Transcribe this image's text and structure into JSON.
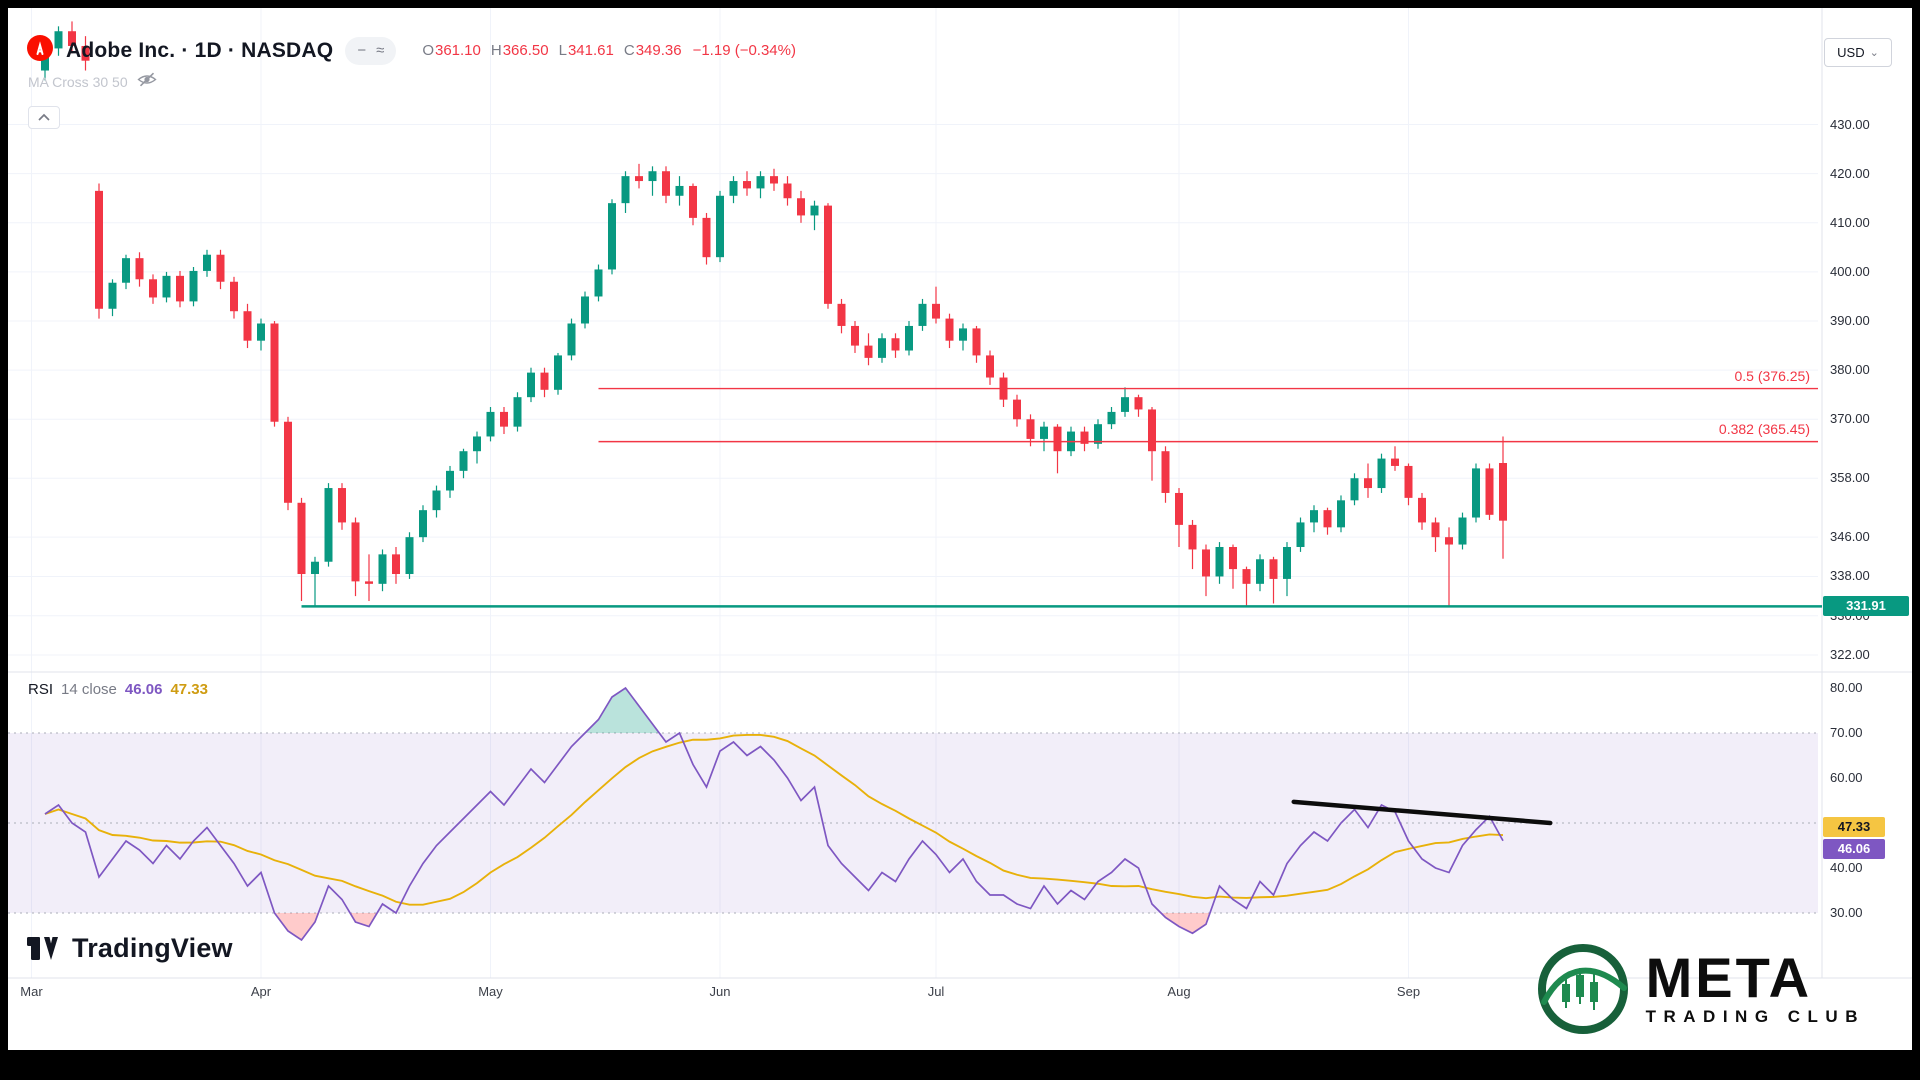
{
  "header": {
    "symbol_title": "Adobe Inc. · 1D · NASDAQ",
    "ohlc": {
      "o_label": "O",
      "o": "361.10",
      "h_label": "H",
      "h": "366.50",
      "l_label": "L",
      "l": "341.61",
      "c_label": "C",
      "c": "349.36",
      "change": "−1.19 (−0.34%)"
    },
    "indicator": {
      "label": "MA Cross 30 50"
    },
    "currency_button": "USD"
  },
  "icons": {
    "minus": "−",
    "wave": "≈",
    "chevron_down": "⌄"
  },
  "rsi_panel": {
    "title": "RSI",
    "params": "14 close",
    "value_main": "46.06",
    "value_ma": "47.33"
  },
  "watermarks": {
    "tradingview": "TradingView",
    "club_name": "META",
    "club_sub": "TRADING CLUB"
  },
  "chart_data": {
    "type": "candlestick",
    "title": "Adobe Inc. Daily (NASDAQ) with RSI 14",
    "symbol": "Adobe Inc.",
    "timeframe": "1D",
    "exchange": "NASDAQ",
    "price_ticks": [
      {
        "label": "430.00",
        "value": 430
      },
      {
        "label": "420.00",
        "value": 420
      },
      {
        "label": "410.00",
        "value": 410
      },
      {
        "label": "400.00",
        "value": 400
      },
      {
        "label": "390.00",
        "value": 390
      },
      {
        "label": "380.00",
        "value": 380
      },
      {
        "label": "370.00",
        "value": 370
      },
      {
        "label": "358.00",
        "value": 358
      },
      {
        "label": "346.00",
        "value": 346
      },
      {
        "label": "338.00",
        "value": 338
      },
      {
        "label": "330.00",
        "value": 330
      },
      {
        "label": "322.00",
        "value": 322
      }
    ],
    "time_ticks": [
      {
        "label": "Mar",
        "index": -1
      },
      {
        "label": "Apr",
        "index": 16
      },
      {
        "label": "May",
        "index": 33
      },
      {
        "label": "Jun",
        "index": 50
      },
      {
        "label": "Jul",
        "index": 66
      },
      {
        "label": "Aug",
        "index": 84
      },
      {
        "label": "Sep",
        "index": 101
      }
    ],
    "candles": [
      [
        441,
        447,
        439,
        445.5
      ],
      [
        445.5,
        450,
        444,
        449
      ],
      [
        449,
        451,
        444.5,
        446
      ],
      [
        446,
        448,
        441,
        443
      ],
      [
        416.5,
        418,
        390.5,
        392.5
      ],
      [
        392.5,
        398.5,
        391,
        397.8
      ],
      [
        397.8,
        403.5,
        396.5,
        402.8
      ],
      [
        402.8,
        404,
        397,
        398.5
      ],
      [
        398.5,
        399.5,
        393.5,
        394.8
      ],
      [
        394.8,
        400,
        393.8,
        399.2
      ],
      [
        399.2,
        400.2,
        392.8,
        394
      ],
      [
        394,
        401,
        393,
        400.2
      ],
      [
        400.2,
        404.5,
        399,
        403.5
      ],
      [
        403.5,
        404.5,
        396.5,
        398
      ],
      [
        398,
        399,
        390.5,
        392
      ],
      [
        392,
        393.5,
        384.5,
        386
      ],
      [
        386,
        390.5,
        384,
        389.5
      ],
      [
        389.5,
        390,
        368.5,
        369.5
      ],
      [
        369.5,
        370.5,
        351.5,
        353
      ],
      [
        353,
        354,
        333,
        338.5
      ],
      [
        338.5,
        342,
        331.9,
        341
      ],
      [
        341,
        357,
        340,
        356
      ],
      [
        356,
        357,
        347.5,
        349
      ],
      [
        349,
        350,
        334,
        337
      ],
      [
        337,
        342.5,
        333,
        336.5
      ],
      [
        336.5,
        343.5,
        335,
        342.5
      ],
      [
        342.5,
        344,
        336.5,
        338.5
      ],
      [
        338.5,
        347,
        337.5,
        346
      ],
      [
        346,
        352.5,
        345,
        351.5
      ],
      [
        351.5,
        356.5,
        350,
        355.5
      ],
      [
        355.5,
        360.5,
        354,
        359.5
      ],
      [
        359.5,
        364,
        358,
        363.5
      ],
      [
        363.5,
        367.5,
        361,
        366.5
      ],
      [
        366.5,
        372.5,
        365.5,
        371.5
      ],
      [
        371.5,
        372.5,
        367,
        368.5
      ],
      [
        368.5,
        375.5,
        367.5,
        374.5
      ],
      [
        374.5,
        380.5,
        373.5,
        379.5
      ],
      [
        379.5,
        380.5,
        374.5,
        376
      ],
      [
        376,
        383.5,
        375,
        383
      ],
      [
        383,
        390.5,
        382,
        389.5
      ],
      [
        389.5,
        396,
        388.5,
        395
      ],
      [
        395,
        401.5,
        394,
        400.5
      ],
      [
        400.5,
        414.8,
        399.5,
        414
      ],
      [
        414,
        420.5,
        412,
        419.5
      ],
      [
        419.5,
        422,
        417,
        418.5
      ],
      [
        418.5,
        421.5,
        415.5,
        420.5
      ],
      [
        420.5,
        421.5,
        414,
        415.5
      ],
      [
        415.5,
        419.5,
        413.5,
        417.5
      ],
      [
        417.5,
        418,
        409.5,
        411
      ],
      [
        411,
        412,
        401.5,
        403
      ],
      [
        403,
        416.5,
        402,
        415.5
      ],
      [
        415.5,
        419.5,
        414,
        418.5
      ],
      [
        418.5,
        420.5,
        415.5,
        417
      ],
      [
        417,
        420.5,
        415,
        419.5
      ],
      [
        419.5,
        421,
        416.5,
        418
      ],
      [
        418,
        419.5,
        413.5,
        415
      ],
      [
        415,
        416.5,
        410,
        411.5
      ],
      [
        411.5,
        414.5,
        408.5,
        413.5
      ],
      [
        413.5,
        414,
        392.5,
        393.5
      ],
      [
        393.5,
        394.5,
        387.5,
        389
      ],
      [
        389,
        390,
        383.5,
        385
      ],
      [
        385,
        387.5,
        381,
        382.5
      ],
      [
        382.5,
        387.5,
        381.5,
        386.5
      ],
      [
        386.5,
        387.5,
        382.5,
        384
      ],
      [
        384,
        390,
        383,
        389
      ],
      [
        389,
        394.5,
        388,
        393.5
      ],
      [
        393.5,
        397,
        389.5,
        390.5
      ],
      [
        390.5,
        391.5,
        384.5,
        386
      ],
      [
        386,
        389.5,
        384,
        388.5
      ],
      [
        388.5,
        389,
        381.5,
        383
      ],
      [
        383,
        384,
        377,
        378.5
      ],
      [
        378.5,
        379.5,
        372.5,
        374
      ],
      [
        374,
        375,
        368.5,
        370
      ],
      [
        370,
        371,
        364.5,
        366
      ],
      [
        366,
        369.5,
        363.5,
        368.5
      ],
      [
        368.5,
        369,
        359,
        363.5
      ],
      [
        363.5,
        368.5,
        362.5,
        367.5
      ],
      [
        367.5,
        368.5,
        363.5,
        365
      ],
      [
        365,
        370,
        364,
        369
      ],
      [
        369,
        372.5,
        368,
        371.5
      ],
      [
        371.5,
        376.5,
        370.5,
        374.5
      ],
      [
        374.5,
        375,
        370.5,
        372
      ],
      [
        372,
        372.5,
        357.5,
        363.5
      ],
      [
        363.5,
        364.5,
        353,
        355
      ],
      [
        355,
        356,
        344,
        348.5
      ],
      [
        348.5,
        349.5,
        339.5,
        343.5
      ],
      [
        343.5,
        344.5,
        334,
        338
      ],
      [
        338,
        345,
        336.5,
        344
      ],
      [
        344,
        344.5,
        335.5,
        339.5
      ],
      [
        339.5,
        340,
        331.9,
        336.5
      ],
      [
        336.5,
        342.5,
        335,
        341.5
      ],
      [
        341.5,
        342,
        332.5,
        337.5
      ],
      [
        337.5,
        345,
        334,
        344
      ],
      [
        344,
        350,
        343,
        349
      ],
      [
        349,
        352.5,
        347,
        351.5
      ],
      [
        351.5,
        352,
        346.5,
        348
      ],
      [
        348,
        354.5,
        347,
        353.5
      ],
      [
        353.5,
        359,
        352.5,
        358
      ],
      [
        358,
        361,
        354,
        356
      ],
      [
        356,
        363,
        355,
        362
      ],
      [
        362,
        364.5,
        359.5,
        360.5
      ],
      [
        360.5,
        361,
        352.5,
        354
      ],
      [
        354,
        355,
        347.5,
        349
      ],
      [
        349,
        350,
        343,
        346
      ],
      [
        346,
        348,
        332,
        344.5
      ],
      [
        344.5,
        351,
        343.5,
        350
      ],
      [
        350,
        361,
        349,
        360
      ],
      [
        360,
        361,
        349.5,
        350.55
      ],
      [
        361.1,
        366.5,
        341.61,
        349.36
      ]
    ],
    "fib_levels": [
      {
        "label": "0.5 (376.25)",
        "value": 376.25,
        "start_index": 41
      },
      {
        "label": "0.382 (365.45)",
        "value": 365.45,
        "start_index": 41
      }
    ],
    "support_line": {
      "value": 331.91,
      "start_index": 19,
      "badge_label": "331.91"
    },
    "rsi": {
      "period": 14,
      "source": "close",
      "last": 46.06,
      "ma_last": 47.33,
      "band": [
        30,
        70
      ],
      "mid": 50,
      "values": [
        52,
        54,
        50,
        48,
        38,
        42,
        46,
        44,
        41,
        45,
        42,
        46,
        49,
        45,
        41,
        36,
        39,
        30,
        26,
        24,
        28,
        36,
        33,
        28,
        27,
        32,
        30,
        36,
        41,
        45,
        48,
        51,
        54,
        57,
        54,
        58,
        62,
        59,
        63,
        67,
        70,
        73,
        78,
        80,
        76,
        72,
        68,
        70,
        63,
        58,
        66,
        68,
        65,
        67,
        64,
        60,
        55,
        58,
        45,
        41,
        38,
        35,
        39,
        37,
        42,
        46,
        43,
        39,
        42,
        37,
        34,
        34,
        32,
        31,
        36,
        32,
        35,
        33,
        37,
        39,
        42,
        40,
        32,
        29,
        27,
        25.5,
        27.5,
        36,
        33,
        31,
        37,
        34,
        41,
        45,
        48,
        46,
        50,
        53,
        49,
        54,
        52.5,
        46,
        42,
        40,
        39,
        45,
        48.5,
        51.5,
        46.06
      ],
      "ticks": [
        {
          "label": "80.00",
          "value": 80
        },
        {
          "label": "70.00",
          "value": 70
        },
        {
          "label": "60.00",
          "value": 60
        },
        {
          "label": "40.00",
          "value": 40
        },
        {
          "label": "30.00",
          "value": 30
        }
      ],
      "badges": [
        {
          "label": "47.33",
          "value": 47.33,
          "color": "#f5c542",
          "text_color": "#131722"
        },
        {
          "label": "46.06",
          "value": 46.06,
          "color": "#7e57c2",
          "text_color": "#ffffff"
        }
      ],
      "trendline": {
        "from": {
          "index": 92.5,
          "value": 54.7
        },
        "to": {
          "index": 111.5,
          "value": 50
        }
      }
    },
    "colors": {
      "up": "#089981",
      "down": "#f23645",
      "support": "#089981",
      "fib": "#f23645",
      "rsi": "#7e57c2",
      "rsi_ma": "#e8b10a",
      "band_fill": "rgba(126,87,194,0.10)",
      "overbought_fill": "rgba(8,153,129,0.28)",
      "oversold_fill": "rgba(255,82,82,0.30)",
      "grid": "#f0f3fa",
      "separator": "#e0e3eb",
      "trendline": "#0c0c0c"
    }
  }
}
